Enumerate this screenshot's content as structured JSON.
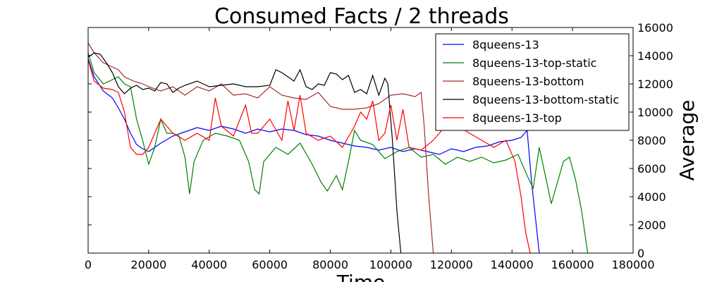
{
  "chart_data": {
    "type": "line",
    "title": "Consumed Facts / 2 threads",
    "xlabel": "Time",
    "ylabel": "Average",
    "xlim": [
      0,
      180000
    ],
    "ylim": [
      0,
      16000
    ],
    "xticks": [
      "0",
      "20000",
      "40000",
      "60000",
      "80000",
      "100000",
      "120000",
      "140000",
      "160000",
      "180000"
    ],
    "yticks": [
      "0",
      "2000",
      "4000",
      "6000",
      "8000",
      "10000",
      "12000",
      "14000",
      "16000"
    ],
    "y_axis_side": "right",
    "grid": false,
    "legend_position": "top-right",
    "series": [
      {
        "name": "8queens-13",
        "color": "#0000ff",
        "x": [
          0,
          2000,
          5000,
          8000,
          10000,
          12000,
          14000,
          16000,
          18000,
          20000,
          24000,
          28000,
          32000,
          36000,
          40000,
          44000,
          48000,
          52000,
          56000,
          60000,
          64000,
          68000,
          72000,
          76000,
          80000,
          84000,
          88000,
          92000,
          96000,
          100000,
          104000,
          108000,
          112000,
          116000,
          120000,
          124000,
          128000,
          132000,
          136000,
          140000,
          143000,
          145000,
          146500,
          148000,
          149000
        ],
        "y": [
          13800,
          12500,
          11500,
          11000,
          10300,
          9500,
          8500,
          7700,
          7400,
          7200,
          7800,
          8300,
          8600,
          8900,
          8700,
          9000,
          8800,
          8500,
          8800,
          8600,
          8800,
          8700,
          8400,
          8300,
          8000,
          7800,
          7600,
          7500,
          7300,
          7500,
          7200,
          7400,
          7200,
          7000,
          7400,
          7200,
          7500,
          7600,
          7900,
          8000,
          8200,
          8700,
          5000,
          2000,
          0
        ]
      },
      {
        "name": "8queens-13-top-static",
        "color": "#008000",
        "x": [
          0,
          2000,
          5000,
          8000,
          10000,
          12000,
          14000,
          16000,
          18000,
          20000,
          22000,
          24000,
          26000,
          28000,
          30000,
          32000,
          33500,
          35000,
          38000,
          42000,
          46000,
          50000,
          53000,
          55000,
          56500,
          58000,
          62000,
          66000,
          70000,
          74000,
          77000,
          79000,
          82000,
          84000,
          86000,
          88000,
          90000,
          94000,
          98000,
          102000,
          106000,
          110000,
          114000,
          118000,
          122000,
          126000,
          130000,
          134000,
          138000,
          142000,
          145000,
          147000,
          149000,
          151000,
          153000,
          155000,
          157000,
          159000,
          161000,
          163000,
          165000
        ],
        "y": [
          14200,
          12800,
          12000,
          12300,
          12500,
          12000,
          11800,
          9500,
          8000,
          6300,
          7500,
          9500,
          8500,
          8500,
          8300,
          6800,
          4200,
          6500,
          8000,
          8500,
          8300,
          8000,
          6500,
          4500,
          4200,
          6500,
          7500,
          7000,
          7800,
          6300,
          5000,
          4400,
          5500,
          4500,
          6500,
          8700,
          8000,
          7700,
          6700,
          7200,
          7500,
          6800,
          7000,
          6300,
          6800,
          6500,
          6800,
          6400,
          6600,
          7000,
          5500,
          4600,
          7500,
          5500,
          3500,
          5000,
          6500,
          6800,
          5200,
          3000,
          0
        ]
      },
      {
        "name": "8queens-13-bottom",
        "color": "#a52a2a",
        "x": [
          0,
          2000,
          5000,
          8000,
          10000,
          12000,
          15000,
          18000,
          20000,
          24000,
          28000,
          32000,
          36000,
          40000,
          44000,
          48000,
          52000,
          56000,
          60000,
          64000,
          68000,
          72000,
          76000,
          80000,
          84000,
          88000,
          92000,
          96000,
          100000,
          104000,
          108000,
          110000,
          111000,
          112500,
          114000
        ],
        "y": [
          14900,
          14200,
          13500,
          13200,
          13000,
          12500,
          12200,
          12000,
          11800,
          11500,
          11800,
          11200,
          11800,
          11500,
          12000,
          11200,
          11300,
          11000,
          11800,
          11200,
          11000,
          10900,
          11400,
          10400,
          10200,
          10200,
          10300,
          10600,
          11200,
          11300,
          11100,
          11400,
          9000,
          4000,
          0
        ]
      },
      {
        "name": "8queens-13-bottom-static",
        "color": "#000000",
        "x": [
          0,
          2000,
          4000,
          6000,
          8000,
          10000,
          12000,
          14000,
          16000,
          18000,
          20000,
          22000,
          24000,
          26000,
          28000,
          30000,
          32000,
          36000,
          40000,
          44000,
          48000,
          52000,
          56000,
          60000,
          62000,
          64000,
          68000,
          70000,
          72000,
          74000,
          76000,
          78000,
          80000,
          82000,
          84000,
          86000,
          88000,
          90000,
          92000,
          94000,
          96000,
          98000,
          99000,
          100500,
          102000,
          103300
        ],
        "y": [
          13900,
          14200,
          14100,
          13500,
          12800,
          11800,
          11300,
          11700,
          11900,
          11600,
          11700,
          11500,
          12100,
          12000,
          11400,
          11700,
          11900,
          12200,
          11800,
          11900,
          12000,
          11800,
          11800,
          11900,
          13000,
          12800,
          12200,
          13000,
          11800,
          11600,
          12000,
          11900,
          12800,
          12700,
          12300,
          12600,
          11400,
          11600,
          11300,
          12600,
          11200,
          12400,
          12000,
          8000,
          3000,
          0
        ]
      },
      {
        "name": "8queens-13-top",
        "color": "#ff0000",
        "x": [
          0,
          2000,
          5000,
          8000,
          10000,
          12000,
          14000,
          16000,
          18000,
          20000,
          24000,
          28000,
          32000,
          36000,
          40000,
          42000,
          44000,
          48000,
          52000,
          54000,
          56000,
          60000,
          64000,
          66000,
          68000,
          70000,
          72000,
          76000,
          80000,
          84000,
          88000,
          90000,
          92000,
          94000,
          96000,
          98000,
          100000,
          102000,
          104000,
          106000,
          110000,
          114000,
          118000,
          122000,
          126000,
          130000,
          134000,
          138000,
          141000,
          143000,
          144500,
          146000
        ],
        "y": [
          13700,
          12200,
          11700,
          11600,
          11400,
          10000,
          7500,
          7000,
          7000,
          7500,
          9500,
          8500,
          8000,
          8500,
          8000,
          11000,
          9000,
          8300,
          10500,
          8500,
          8500,
          9500,
          8000,
          10800,
          8700,
          11200,
          8500,
          8000,
          8300,
          7500,
          9000,
          10000,
          9500,
          10800,
          8000,
          8500,
          10500,
          8000,
          10200,
          7500,
          7300,
          8000,
          9000,
          9000,
          8500,
          8000,
          7500,
          8000,
          6500,
          4000,
          1500,
          0
        ]
      }
    ]
  }
}
